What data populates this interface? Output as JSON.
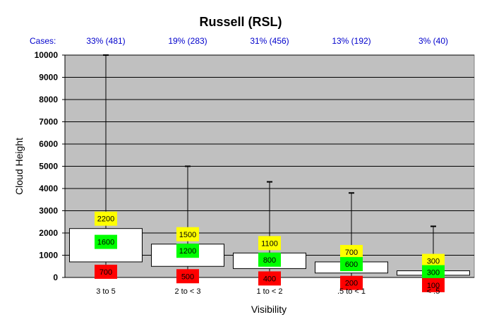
{
  "chart_data": {
    "type": "boxplot",
    "title": "Russell (RSL)",
    "xlabel": "Visibility",
    "ylabel": "Cloud Height",
    "ylim": [
      0,
      10000
    ],
    "yticks": [
      0,
      1000,
      2000,
      3000,
      4000,
      5000,
      6000,
      7000,
      8000,
      9000,
      10000
    ],
    "grid": true,
    "cases_label": "Cases:",
    "categories": [
      {
        "name": "3 to 5",
        "cases": "33% (481)",
        "min": 0,
        "q1": 700,
        "median": 1600,
        "q3": 2200,
        "max": 10000
      },
      {
        "name": "2 to < 3",
        "cases": "19% (283)",
        "min": 0,
        "q1": 500,
        "median": 1200,
        "q3": 1500,
        "max": 5000
      },
      {
        "name": "1 to < 2",
        "cases": "31% (456)",
        "min": 0,
        "q1": 400,
        "median": 800,
        "q3": 1100,
        "max": 4300
      },
      {
        "name": ".5 to < 1",
        "cases": "13% (192)",
        "min": 0,
        "q1": 200,
        "median": 600,
        "q3": 700,
        "max": 3800
      },
      {
        "name": "< .5",
        "cases": "3% (40)",
        "min": 0,
        "q1": 100,
        "median": 300,
        "q3": 300,
        "max": 2300
      }
    ],
    "colors": {
      "plot_bg": "#c0c0c0",
      "box": "#ffffff",
      "q3_label": "#ffff00",
      "median_label": "#00ff00",
      "q1_label": "#ff0000",
      "cases_text": "#0000cc"
    }
  }
}
